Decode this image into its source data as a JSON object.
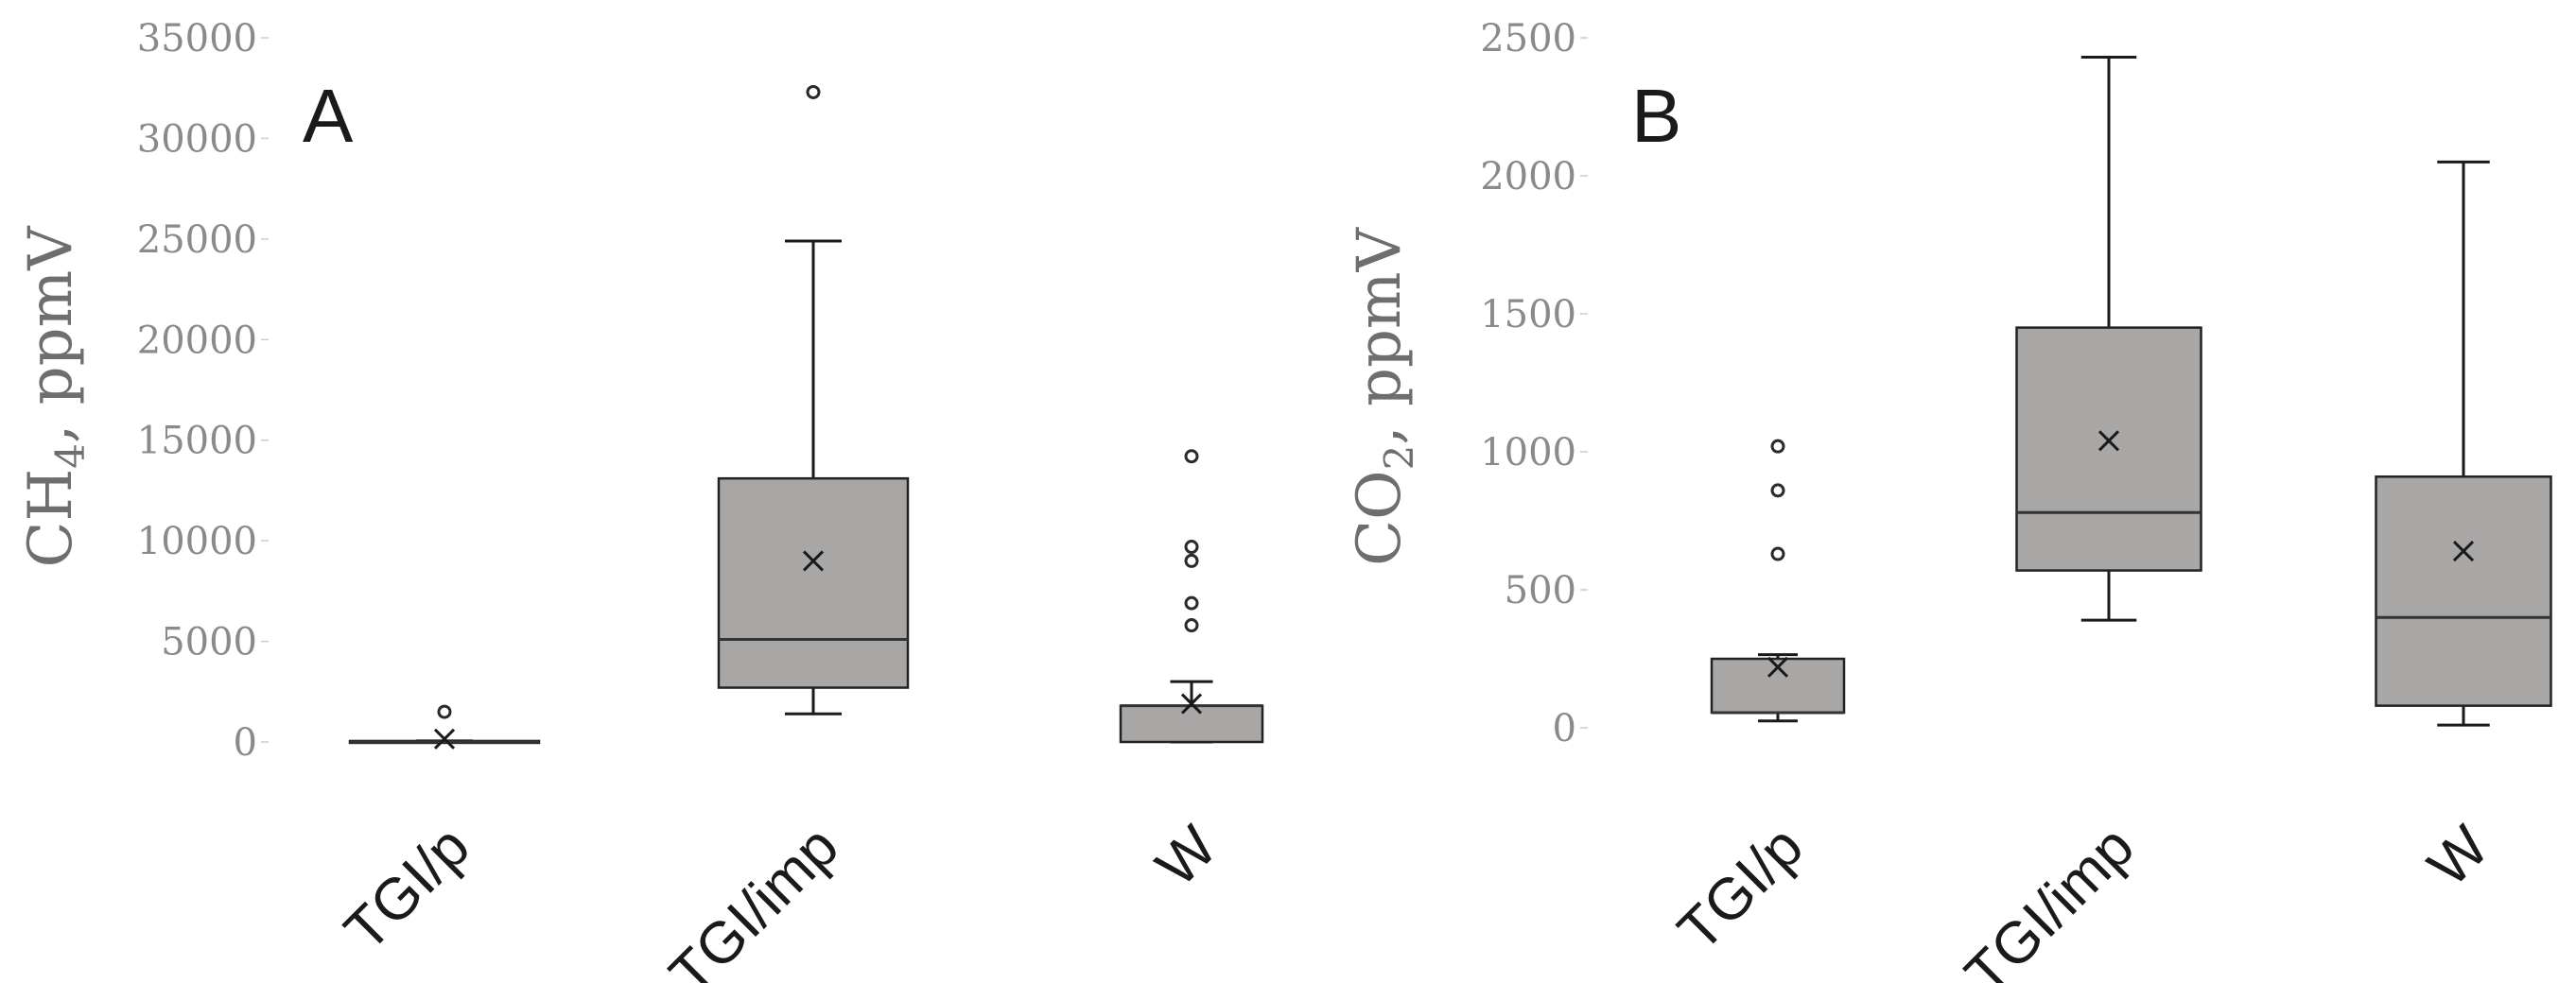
{
  "chart_data": [
    {
      "type": "box",
      "panel_label": "A",
      "ylabel": {
        "main": "CH",
        "sub": "4",
        "rest": ", ppmV"
      },
      "ylim": [
        0,
        35000
      ],
      "yticks": [
        0,
        5000,
        10000,
        15000,
        20000,
        25000,
        30000,
        35000
      ],
      "categories": [
        "TGI/p",
        "TGI/imp",
        "W"
      ],
      "boxes": [
        {
          "category": "TGI/p",
          "whisker_low": 0,
          "q1": 0,
          "median": 0,
          "q3": 50,
          "whisker_high": 50,
          "mean": 150,
          "outliers": [
            1500
          ]
        },
        {
          "category": "TGI/imp",
          "whisker_low": 1400,
          "q1": 2700,
          "median": 5100,
          "q3": 13100,
          "whisker_high": 24900,
          "mean": 9000,
          "outliers": [
            32300
          ]
        },
        {
          "category": "W",
          "whisker_low": 0,
          "q1": 0,
          "median": 1800,
          "q3": 1800,
          "whisker_high": 3000,
          "mean": 1900,
          "outliers": [
            5800,
            6900,
            9000,
            9700,
            14200
          ]
        }
      ]
    },
    {
      "type": "box",
      "panel_label": "B",
      "ylabel": {
        "main": "CO",
        "sub": "2",
        "rest": ", ppmV"
      },
      "ylim": [
        0,
        2500
      ],
      "yticks": [
        0,
        500,
        1000,
        1500,
        2000,
        2500
      ],
      "categories": [
        "TGI/p",
        "TGI/imp",
        "W"
      ],
      "boxes": [
        {
          "category": "TGI/p",
          "whisker_low": 25,
          "q1": 55,
          "median": 55,
          "q3": 250,
          "whisker_high": 265,
          "mean": 220,
          "outliers": [
            630,
            860,
            1020
          ]
        },
        {
          "category": "TGI/imp",
          "whisker_low": 390,
          "q1": 570,
          "median": 780,
          "q3": 1450,
          "whisker_high": 2430,
          "mean": 1040,
          "outliers": []
        },
        {
          "category": "W",
          "whisker_low": 10,
          "q1": 80,
          "median": 400,
          "q3": 910,
          "whisker_high": 2050,
          "mean": 640,
          "outliers": []
        }
      ]
    }
  ]
}
